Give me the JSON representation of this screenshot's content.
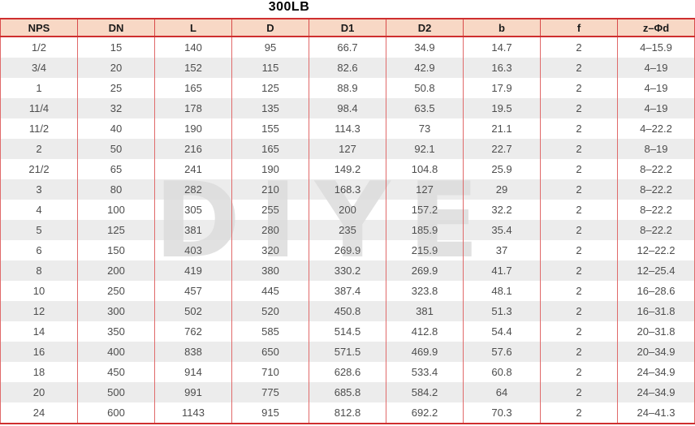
{
  "title": "300LB",
  "watermark_text": "DIYE",
  "colors": {
    "header_bg": "#f8d8c5",
    "border_strong": "#cf2f2f",
    "border_light": "#e06a6a",
    "row_stripe": "#ececec",
    "cell_text": "#4d4d4d",
    "watermark": "#dcdcdc"
  },
  "table": {
    "columns": [
      "NPS",
      "DN",
      "L",
      "D",
      "D1",
      "D2",
      "b",
      "f",
      "z–Φd"
    ],
    "rows": [
      [
        "1/2",
        "15",
        "140",
        "95",
        "66.7",
        "34.9",
        "14.7",
        "2",
        "4–15.9"
      ],
      [
        "3/4",
        "20",
        "152",
        "115",
        "82.6",
        "42.9",
        "16.3",
        "2",
        "4–19"
      ],
      [
        "1",
        "25",
        "165",
        "125",
        "88.9",
        "50.8",
        "17.9",
        "2",
        "4–19"
      ],
      [
        "11/4",
        "32",
        "178",
        "135",
        "98.4",
        "63.5",
        "19.5",
        "2",
        "4–19"
      ],
      [
        "11/2",
        "40",
        "190",
        "155",
        "114.3",
        "73",
        "21.1",
        "2",
        "4–22.2"
      ],
      [
        "2",
        "50",
        "216",
        "165",
        "127",
        "92.1",
        "22.7",
        "2",
        "8–19"
      ],
      [
        "21/2",
        "65",
        "241",
        "190",
        "149.2",
        "104.8",
        "25.9",
        "2",
        "8–22.2"
      ],
      [
        "3",
        "80",
        "282",
        "210",
        "168.3",
        "127",
        "29",
        "2",
        "8–22.2"
      ],
      [
        "4",
        "100",
        "305",
        "255",
        "200",
        "157.2",
        "32.2",
        "2",
        "8–22.2"
      ],
      [
        "5",
        "125",
        "381",
        "280",
        "235",
        "185.9",
        "35.4",
        "2",
        "8–22.2"
      ],
      [
        "6",
        "150",
        "403",
        "320",
        "269.9",
        "215.9",
        "37",
        "2",
        "12–22.2"
      ],
      [
        "8",
        "200",
        "419",
        "380",
        "330.2",
        "269.9",
        "41.7",
        "2",
        "12–25.4"
      ],
      [
        "10",
        "250",
        "457",
        "445",
        "387.4",
        "323.8",
        "48.1",
        "2",
        "16–28.6"
      ],
      [
        "12",
        "300",
        "502",
        "520",
        "450.8",
        "381",
        "51.3",
        "2",
        "16–31.8"
      ],
      [
        "14",
        "350",
        "762",
        "585",
        "514.5",
        "412.8",
        "54.4",
        "2",
        "20–31.8"
      ],
      [
        "16",
        "400",
        "838",
        "650",
        "571.5",
        "469.9",
        "57.6",
        "2",
        "20–34.9"
      ],
      [
        "18",
        "450",
        "914",
        "710",
        "628.6",
        "533.4",
        "60.8",
        "2",
        "24–34.9"
      ],
      [
        "20",
        "500",
        "991",
        "775",
        "685.8",
        "584.2",
        "64",
        "2",
        "24–34.9"
      ],
      [
        "24",
        "600",
        "1143",
        "915",
        "812.8",
        "692.2",
        "70.3",
        "2",
        "24–41.3"
      ]
    ]
  }
}
